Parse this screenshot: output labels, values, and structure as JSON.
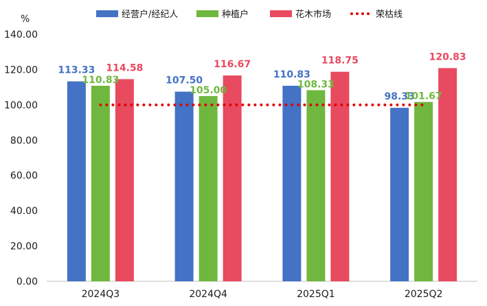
{
  "chart_data": {
    "type": "bar",
    "unit_label": "%",
    "categories": [
      "2024Q3",
      "2024Q4",
      "2025Q1",
      "2025Q2"
    ],
    "series": [
      {
        "name": "经营户/经纪人",
        "color": "#4472C4",
        "values": [
          113.33,
          107.5,
          110.83,
          98.33
        ]
      },
      {
        "name": "种植户",
        "color": "#70B73F",
        "values": [
          110.83,
          105.0,
          108.33,
          101.67
        ]
      },
      {
        "name": "花木市场",
        "color": "#E84A5F",
        "values": [
          114.58,
          116.67,
          118.75,
          120.83
        ]
      }
    ],
    "reference_line": {
      "name": "荣枯线",
      "value": 100,
      "color": "#E00000",
      "style": "dotted"
    },
    "ylim": [
      0,
      140
    ],
    "yticks": [
      "0.00",
      "20.00",
      "40.00",
      "60.00",
      "80.00",
      "100.00",
      "120.00",
      "140.00"
    ],
    "legend_position": "top",
    "grid": false
  }
}
